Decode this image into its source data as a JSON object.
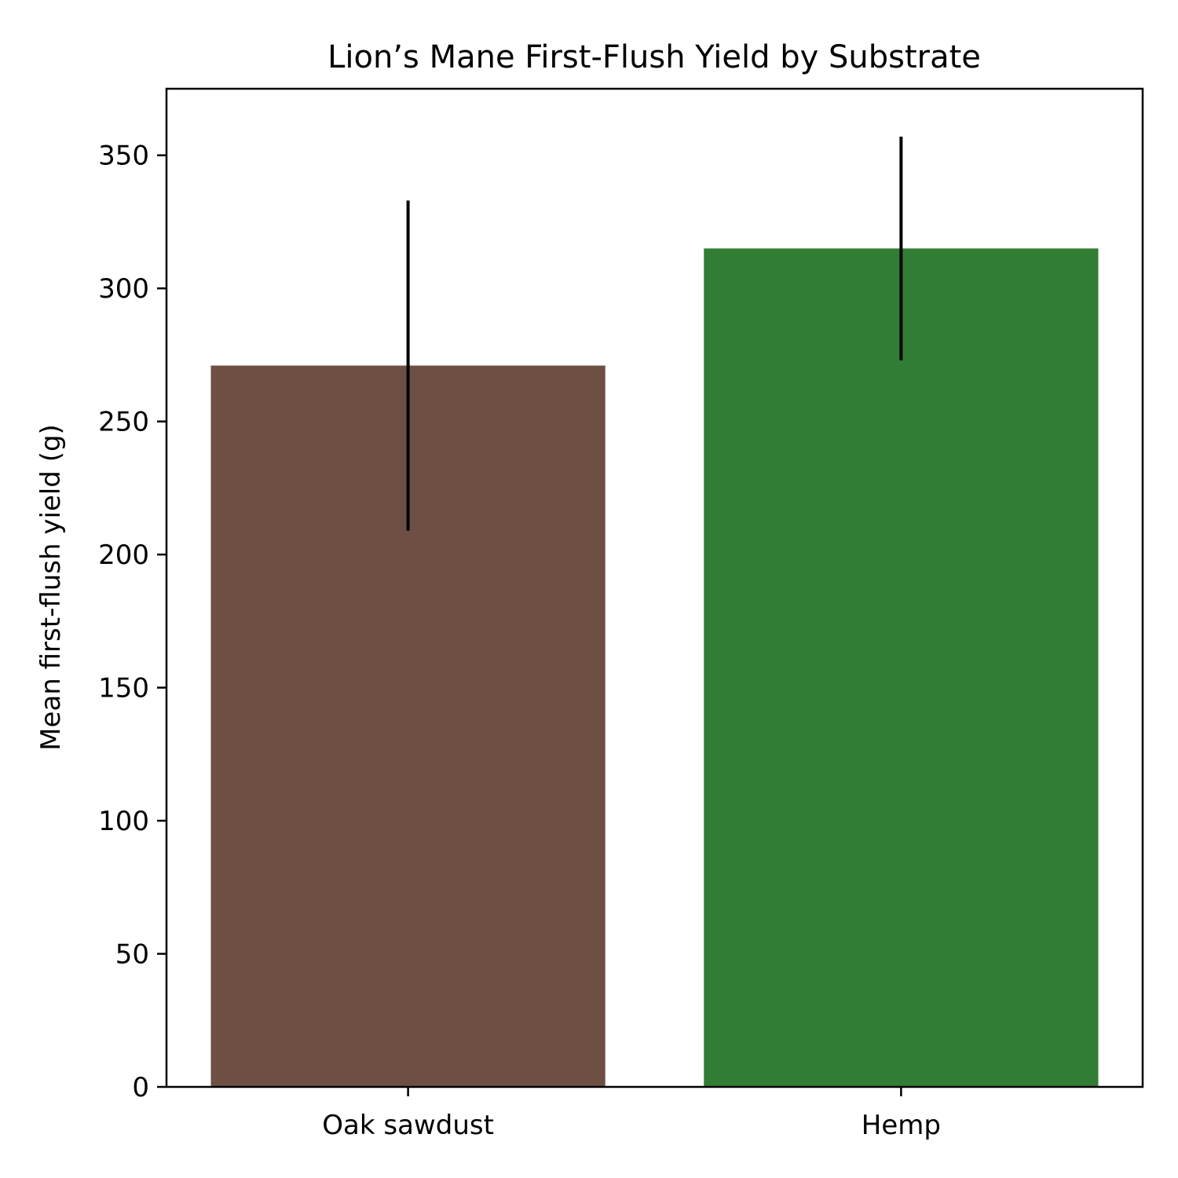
{
  "chart_data": {
    "type": "bar",
    "title": "Lion’s Mane First-Flush Yield by Substrate",
    "xlabel": "",
    "ylabel": "Mean first-flush yield (g)",
    "categories": [
      "Oak sawdust",
      "Hemp"
    ],
    "values": [
      271,
      315
    ],
    "errors": [
      62,
      42
    ],
    "colors": [
      "#6d4f44",
      "#317d33"
    ],
    "ylim": [
      0,
      375
    ],
    "yticks": [
      0,
      50,
      100,
      150,
      200,
      250,
      300,
      350
    ],
    "grid": false
  }
}
